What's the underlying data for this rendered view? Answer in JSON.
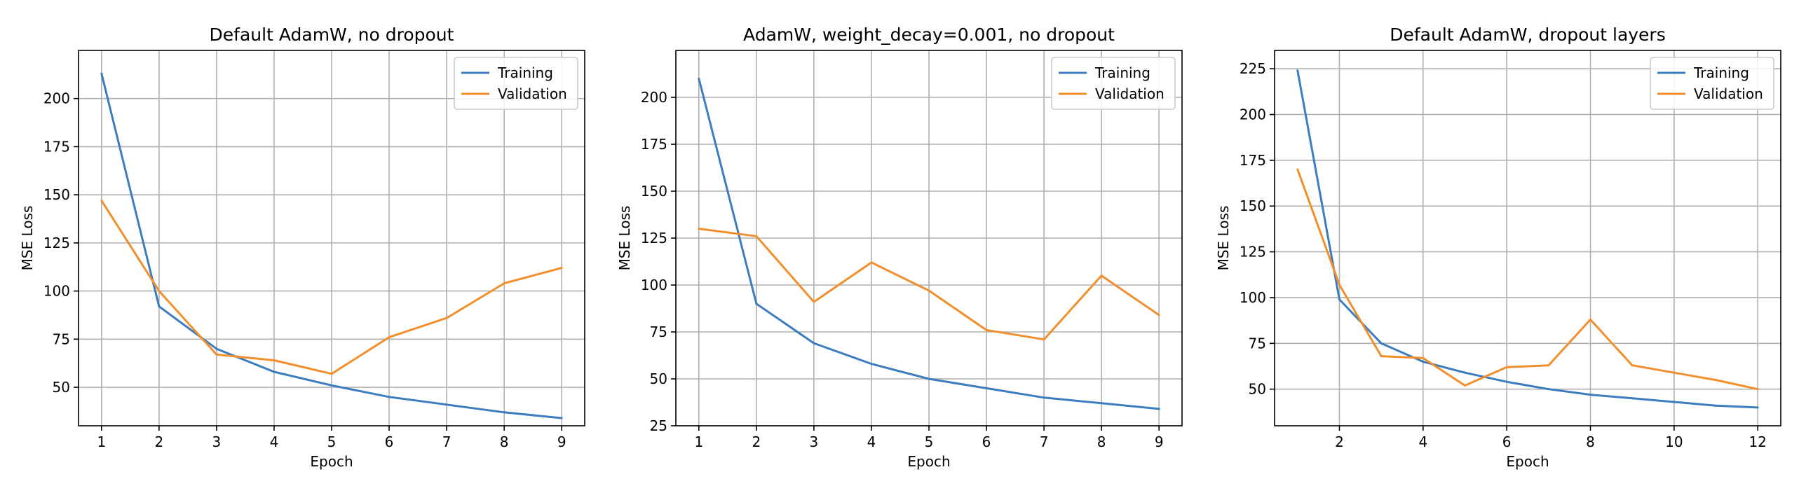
{
  "colors": {
    "training": "#3b7dbf",
    "validation": "#f28e2b"
  },
  "chart_data": [
    {
      "type": "line",
      "title": "Default AdamW, no dropout",
      "xlabel": "Epoch",
      "ylabel": "MSE Loss",
      "xlim": [
        0.6,
        9.4
      ],
      "ylim": [
        30,
        225
      ],
      "xticks": [
        1,
        2,
        3,
        4,
        5,
        6,
        7,
        8,
        9
      ],
      "yticks": [
        50,
        75,
        100,
        125,
        150,
        175,
        200
      ],
      "grid": true,
      "legend": "top-right",
      "series": [
        {
          "name": "Training",
          "x": [
            1,
            2,
            3,
            4,
            5,
            6,
            7,
            8,
            9
          ],
          "values": [
            213,
            92,
            70,
            58,
            51,
            45,
            41,
            37,
            34
          ]
        },
        {
          "name": "Validation",
          "x": [
            1,
            2,
            3,
            4,
            5,
            6,
            7,
            8,
            9
          ],
          "values": [
            147,
            100,
            67,
            64,
            57,
            76,
            86,
            104,
            112
          ]
        }
      ]
    },
    {
      "type": "line",
      "title": "AdamW, weight_decay=0.001, no dropout",
      "xlabel": "Epoch",
      "ylabel": "MSE Loss",
      "xlim": [
        0.6,
        9.4
      ],
      "ylim": [
        25,
        225
      ],
      "xticks": [
        1,
        2,
        3,
        4,
        5,
        6,
        7,
        8,
        9
      ],
      "yticks": [
        25,
        50,
        75,
        100,
        125,
        150,
        175,
        200
      ],
      "grid": true,
      "legend": "top-right",
      "series": [
        {
          "name": "Training",
          "x": [
            1,
            2,
            3,
            4,
            5,
            6,
            7,
            8,
            9
          ],
          "values": [
            210,
            90,
            69,
            58,
            50,
            45,
            40,
            37,
            34
          ]
        },
        {
          "name": "Validation",
          "x": [
            1,
            2,
            3,
            4,
            5,
            6,
            7,
            8,
            9
          ],
          "values": [
            130,
            126,
            91,
            112,
            97,
            76,
            71,
            105,
            84
          ]
        }
      ]
    },
    {
      "type": "line",
      "title": "Default AdamW, dropout layers",
      "xlabel": "Epoch",
      "ylabel": "MSE Loss",
      "xlim": [
        0.45,
        12.55
      ],
      "ylim": [
        30,
        235
      ],
      "xticks": [
        2,
        4,
        6,
        8,
        10,
        12
      ],
      "yticks": [
        50,
        75,
        100,
        125,
        150,
        175,
        200,
        225
      ],
      "grid": true,
      "legend": "top-right",
      "series": [
        {
          "name": "Training",
          "x": [
            1,
            2,
            3,
            4,
            5,
            6,
            7,
            8,
            9,
            10,
            11,
            12
          ],
          "values": [
            224,
            99,
            75,
            65,
            59,
            54,
            50,
            47,
            45,
            43,
            41,
            40
          ]
        },
        {
          "name": "Validation",
          "x": [
            1,
            2,
            3,
            4,
            5,
            6,
            7,
            8,
            9,
            10,
            11,
            12
          ],
          "values": [
            170,
            107,
            68,
            67,
            52,
            62,
            63,
            88,
            63,
            59,
            55,
            50
          ]
        }
      ]
    }
  ]
}
